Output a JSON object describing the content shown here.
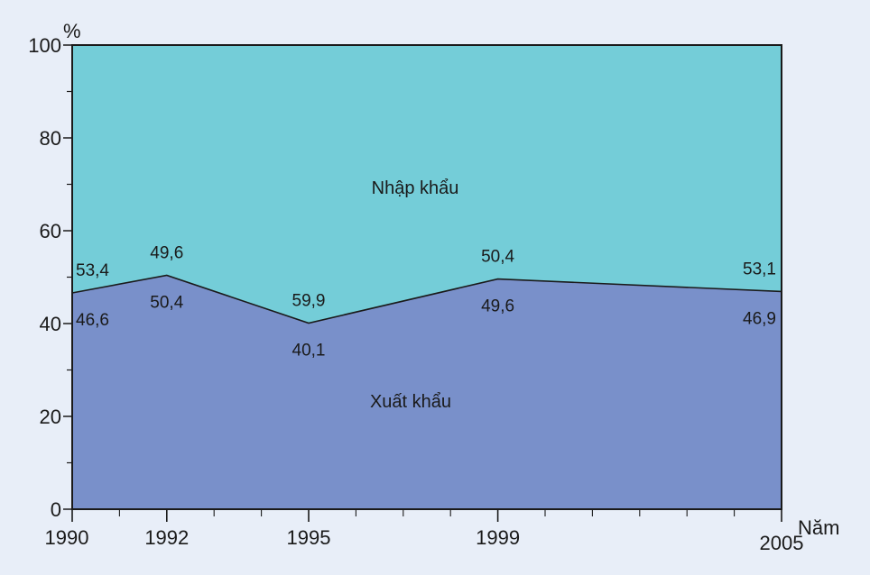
{
  "colors": {
    "background": "#e8eef8",
    "import_area": "#74cdd8",
    "export_area": "#7990ca",
    "axis": "#1a1a1a"
  },
  "chart_data": {
    "type": "area",
    "stacked": true,
    "x": [
      1990,
      1992,
      1995,
      1999,
      2005
    ],
    "x_tick_labels": [
      "1990",
      "1992",
      "1995",
      "1999",
      "2005"
    ],
    "xlabel": "Năm",
    "ylabel": "%",
    "ylim": [
      0,
      100
    ],
    "y_ticks": [
      0,
      20,
      40,
      60,
      80,
      100
    ],
    "y_tick_labels": [
      "0",
      "20",
      "40",
      "60",
      "80",
      "100"
    ],
    "grid": false,
    "series": [
      {
        "name": "Xuất khẩu",
        "values": [
          46.6,
          50.4,
          40.1,
          49.6,
          46.9
        ],
        "value_labels": [
          "46,6",
          "50,4",
          "40,1",
          "49,6",
          "46,9"
        ]
      },
      {
        "name": "Nhập khẩu",
        "values": [
          53.4,
          49.6,
          59.9,
          50.4,
          53.1
        ],
        "value_labels": [
          "53,4",
          "49,6",
          "59,9",
          "50,4",
          "53,1"
        ]
      }
    ]
  }
}
